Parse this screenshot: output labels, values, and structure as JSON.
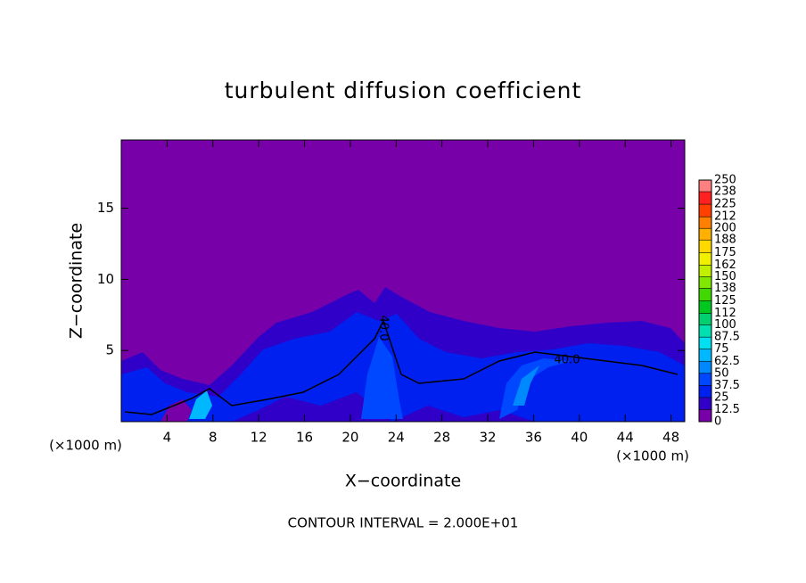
{
  "chart_data": {
    "type": "contour",
    "title": "turbulent diffusion coefficient",
    "x_label": "X−coordinate",
    "y_label": "Z−coordinate",
    "x_unit": "(×1000 m)",
    "footer": "CONTOUR INTERVAL = 2.000E+01",
    "contour_labels": [
      "40.0",
      "40.0"
    ],
    "xlim": [
      0,
      49.2
    ],
    "xticks": [
      4,
      8,
      12,
      16,
      20,
      24,
      28,
      32,
      36,
      40,
      44,
      48
    ],
    "ylim": [
      0,
      19.8
    ],
    "yticks": [
      5,
      10,
      15
    ],
    "colorbar_ticks": [
      0,
      12.5,
      25,
      37.5,
      50,
      62.5,
      75,
      87.5,
      100,
      112,
      125,
      138,
      150,
      162,
      175,
      188,
      200,
      212,
      225,
      238,
      250
    ],
    "colors": [
      "#7800a8",
      "#3000c8",
      "#0020f0",
      "#0048ff",
      "#0088ff",
      "#00b8ff",
      "#00e0f0",
      "#00e0b0",
      "#00d070",
      "#00c820",
      "#40d800",
      "#80e800",
      "#c0f000",
      "#f0f000",
      "#ffd800",
      "#ffb000",
      "#ff8000",
      "#ff4000",
      "#ff2020",
      "#ff8080"
    ]
  }
}
